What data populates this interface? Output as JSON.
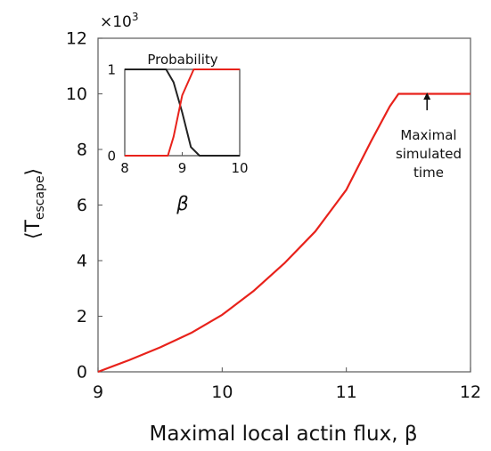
{
  "chart_data": [
    {
      "type": "line",
      "xlabel": "Maximal local actin flux, β",
      "ylabel": "⟨T",
      "ylabel_sub": "escape",
      "ylabel_close": "⟩",
      "y_multiplier_label": "×10",
      "y_multiplier_exp": "3",
      "xlim": [
        9,
        12
      ],
      "ylim": [
        0,
        12
      ],
      "x_ticks": [
        "9",
        "10",
        "11",
        "12"
      ],
      "y_ticks": [
        "0",
        "2",
        "4",
        "6",
        "8",
        "10",
        "12"
      ],
      "grid": false,
      "series": [
        {
          "color": "#e8221b",
          "x": [
            9.0,
            9.25,
            9.5,
            9.75,
            10.0,
            10.25,
            10.5,
            10.75,
            11.0,
            11.2,
            11.35,
            11.42,
            11.5,
            12.0
          ],
          "y": [
            0.0,
            0.42,
            0.88,
            1.4,
            2.05,
            2.9,
            3.9,
            5.05,
            6.55,
            8.3,
            9.55,
            10.0,
            10.0,
            10.0
          ]
        }
      ],
      "annotation": {
        "lines": [
          "Maximal",
          "simulated",
          "time"
        ],
        "arrow_to": {
          "x": 11.65,
          "y": 10.05
        }
      }
    },
    {
      "type": "line",
      "title": "Probability",
      "xlabel": "β",
      "xlim": [
        8,
        10
      ],
      "ylim": [
        0,
        1
      ],
      "x_ticks": [
        "8",
        "9",
        "10"
      ],
      "y_ticks": [
        "0",
        "1"
      ],
      "grid": false,
      "series": [
        {
          "color": "#222222",
          "x": [
            8.0,
            8.72,
            8.85,
            9.0,
            9.15,
            9.3,
            10.0
          ],
          "y": [
            1.0,
            1.0,
            0.85,
            0.5,
            0.1,
            0.0,
            0.0
          ]
        },
        {
          "color": "#e8221b",
          "x": [
            8.0,
            8.75,
            8.85,
            9.0,
            9.2,
            10.0
          ],
          "y": [
            0.0,
            0.0,
            0.22,
            0.7,
            1.0,
            1.0
          ]
        }
      ]
    }
  ]
}
